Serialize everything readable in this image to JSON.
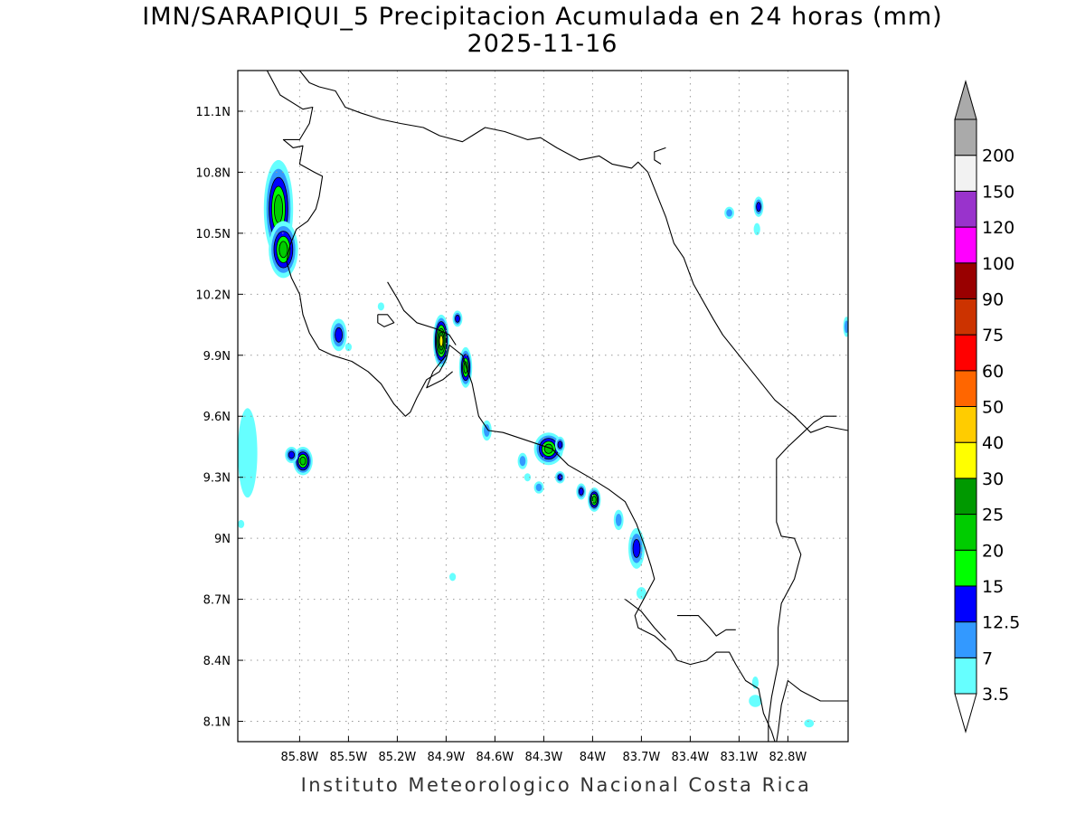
{
  "title": "IMN/SARAPIQUI_5 Precipitacion Acumulada en 24 horas (mm)",
  "subtitle": "2025-11-16",
  "footer": "Instituto Meteorologico Nacional Costa Rica",
  "map": {
    "lon_range": [
      -86.18,
      -82.43
    ],
    "lat_range": [
      8.0,
      11.3
    ],
    "x_ticks": [
      {
        "lon": -85.8,
        "label": "85.8W"
      },
      {
        "lon": -85.5,
        "label": "85.5W"
      },
      {
        "lon": -85.2,
        "label": "85.2W"
      },
      {
        "lon": -84.9,
        "label": "84.9W"
      },
      {
        "lon": -84.6,
        "label": "84.6W"
      },
      {
        "lon": -84.3,
        "label": "84.3W"
      },
      {
        "lon": -84.0,
        "label": "84W"
      },
      {
        "lon": -83.7,
        "label": "83.7W"
      },
      {
        "lon": -83.4,
        "label": "83.4W"
      },
      {
        "lon": -83.1,
        "label": "83.1W"
      },
      {
        "lon": -82.8,
        "label": "82.8W"
      }
    ],
    "y_ticks": [
      {
        "lat": 11.1,
        "label": "11.1N"
      },
      {
        "lat": 10.8,
        "label": "10.8N"
      },
      {
        "lat": 10.5,
        "label": "10.5N"
      },
      {
        "lat": 10.2,
        "label": "10.2N"
      },
      {
        "lat": 9.9,
        "label": "9.9N"
      },
      {
        "lat": 9.6,
        "label": "9.6N"
      },
      {
        "lat": 9.3,
        "label": "9.3N"
      },
      {
        "lat": 9.0,
        "label": "9N"
      },
      {
        "lat": 8.7,
        "label": "8.7N"
      },
      {
        "lat": 8.4,
        "label": "8.4N"
      },
      {
        "lat": 8.1,
        "label": "8.1N"
      }
    ],
    "grid": true
  },
  "legend": {
    "orientation": "vertical",
    "levels": [
      {
        "label": "3.5",
        "color": "#66ffff"
      },
      {
        "label": "7",
        "color": "#3399ff"
      },
      {
        "label": "12.5",
        "color": "#0000ff"
      },
      {
        "label": "15",
        "color": "#00ff00"
      },
      {
        "label": "20",
        "color": "#00cc00"
      },
      {
        "label": "25",
        "color": "#009900"
      },
      {
        "label": "30",
        "color": "#ffff00"
      },
      {
        "label": "40",
        "color": "#ffcc00"
      },
      {
        "label": "50",
        "color": "#ff6600"
      },
      {
        "label": "60",
        "color": "#ff0000"
      },
      {
        "label": "75",
        "color": "#cc3300"
      },
      {
        "label": "90",
        "color": "#990000"
      },
      {
        "label": "100",
        "color": "#ff00ff"
      },
      {
        "label": "120",
        "color": "#9933cc"
      },
      {
        "label": "150",
        "color": "#f2f2f2"
      },
      {
        "label": "200",
        "color": "#aaaaaa"
      }
    ],
    "under_color": "#ffffff",
    "over_color": "#aaaaaa"
  },
  "precip_cells": [
    {
      "lon": -85.93,
      "lat": 10.62,
      "rx": 0.09,
      "ry": 0.24,
      "level": 4
    },
    {
      "lon": -85.9,
      "lat": 10.42,
      "rx": 0.09,
      "ry": 0.14,
      "level": 4
    },
    {
      "lon": -85.56,
      "lat": 10.0,
      "rx": 0.05,
      "ry": 0.08,
      "level": 2
    },
    {
      "lon": -84.93,
      "lat": 9.97,
      "rx": 0.05,
      "ry": 0.13,
      "level": 6
    },
    {
      "lon": -84.83,
      "lat": 10.08,
      "rx": 0.03,
      "ry": 0.04,
      "level": 2
    },
    {
      "lon": -84.78,
      "lat": 9.84,
      "rx": 0.04,
      "ry": 0.1,
      "level": 4
    },
    {
      "lon": -84.65,
      "lat": 9.53,
      "rx": 0.03,
      "ry": 0.05,
      "level": 1
    },
    {
      "lon": -85.78,
      "lat": 9.38,
      "rx": 0.06,
      "ry": 0.07,
      "level": 4
    },
    {
      "lon": -85.85,
      "lat": 9.41,
      "rx": 0.04,
      "ry": 0.04,
      "level": 2
    },
    {
      "lon": -86.12,
      "lat": 9.42,
      "rx": 0.06,
      "ry": 0.22,
      "level": 0
    },
    {
      "lon": -84.27,
      "lat": 9.44,
      "rx": 0.09,
      "ry": 0.08,
      "level": 4
    },
    {
      "lon": -84.2,
      "lat": 9.46,
      "rx": 0.03,
      "ry": 0.04,
      "level": 2
    },
    {
      "lon": -84.2,
      "lat": 9.3,
      "rx": 0.03,
      "ry": 0.03,
      "level": 2
    },
    {
      "lon": -84.43,
      "lat": 9.38,
      "rx": 0.03,
      "ry": 0.04,
      "level": 1
    },
    {
      "lon": -84.4,
      "lat": 9.3,
      "rx": 0.02,
      "ry": 0.02,
      "level": 0
    },
    {
      "lon": -84.33,
      "lat": 9.25,
      "rx": 0.03,
      "ry": 0.03,
      "level": 1
    },
    {
      "lon": -84.07,
      "lat": 9.23,
      "rx": 0.03,
      "ry": 0.04,
      "level": 2
    },
    {
      "lon": -83.99,
      "lat": 9.19,
      "rx": 0.04,
      "ry": 0.06,
      "level": 4
    },
    {
      "lon": -83.84,
      "lat": 9.09,
      "rx": 0.03,
      "ry": 0.05,
      "level": 1
    },
    {
      "lon": -83.73,
      "lat": 8.95,
      "rx": 0.05,
      "ry": 0.1,
      "level": 2
    },
    {
      "lon": -83.7,
      "lat": 8.73,
      "rx": 0.03,
      "ry": 0.03,
      "level": 0
    },
    {
      "lon": -82.98,
      "lat": 10.63,
      "rx": 0.03,
      "ry": 0.05,
      "level": 2
    },
    {
      "lon": -83.16,
      "lat": 10.6,
      "rx": 0.03,
      "ry": 0.03,
      "level": 1
    },
    {
      "lon": -82.99,
      "lat": 10.52,
      "rx": 0.02,
      "ry": 0.03,
      "level": 0
    },
    {
      "lon": -82.44,
      "lat": 10.04,
      "rx": 0.02,
      "ry": 0.05,
      "level": 1
    },
    {
      "lon": -84.86,
      "lat": 8.81,
      "rx": 0.02,
      "ry": 0.02,
      "level": 0
    },
    {
      "lon": -83.0,
      "lat": 8.2,
      "rx": 0.04,
      "ry": 0.03,
      "level": 0
    },
    {
      "lon": -83.0,
      "lat": 8.29,
      "rx": 0.02,
      "ry": 0.03,
      "level": 0
    },
    {
      "lon": -82.67,
      "lat": 8.09,
      "rx": 0.03,
      "ry": 0.02,
      "level": 0
    },
    {
      "lon": -86.16,
      "lat": 9.07,
      "rx": 0.02,
      "ry": 0.02,
      "level": 0
    },
    {
      "lon": -85.5,
      "lat": 9.94,
      "rx": 0.02,
      "ry": 0.02,
      "level": 0
    },
    {
      "lon": -85.3,
      "lat": 10.14,
      "rx": 0.02,
      "ry": 0.02,
      "level": 0
    }
  ],
  "coastlines": [
    [
      [
        -86.0,
        11.3
      ],
      [
        -85.92,
        11.18
      ],
      [
        -85.78,
        11.11
      ],
      [
        -85.72,
        11.12
      ],
      [
        -85.74,
        11.04
      ],
      [
        -85.8,
        10.96
      ],
      [
        -85.9,
        10.96
      ],
      [
        -85.84,
        10.92
      ],
      [
        -85.78,
        10.93
      ],
      [
        -85.8,
        10.84
      ],
      [
        -85.71,
        10.8
      ],
      [
        -85.66,
        10.78
      ],
      [
        -85.68,
        10.68
      ],
      [
        -85.7,
        10.62
      ],
      [
        -85.75,
        10.56
      ],
      [
        -85.82,
        10.52
      ],
      [
        -85.86,
        10.44
      ],
      [
        -85.88,
        10.36
      ],
      [
        -85.85,
        10.28
      ],
      [
        -85.8,
        10.2
      ],
      [
        -85.78,
        10.1
      ],
      [
        -85.74,
        10.01
      ],
      [
        -85.68,
        9.93
      ],
      [
        -85.6,
        9.9
      ],
      [
        -85.48,
        9.87
      ],
      [
        -85.38,
        9.82
      ],
      [
        -85.3,
        9.76
      ],
      [
        -85.22,
        9.66
      ],
      [
        -85.15,
        9.6
      ],
      [
        -85.12,
        9.62
      ],
      [
        -85.08,
        9.69
      ],
      [
        -85.02,
        9.78
      ],
      [
        -84.94,
        9.82
      ],
      [
        -84.9,
        9.88
      ],
      [
        -84.88,
        9.95
      ],
      [
        -84.8,
        9.9
      ],
      [
        -84.74,
        9.76
      ],
      [
        -84.7,
        9.6
      ],
      [
        -84.64,
        9.53
      ],
      [
        -84.55,
        9.52
      ],
      [
        -84.4,
        9.48
      ],
      [
        -84.25,
        9.44
      ],
      [
        -84.15,
        9.36
      ],
      [
        -84.02,
        9.3
      ],
      [
        -83.9,
        9.24
      ],
      [
        -83.8,
        9.18
      ],
      [
        -83.73,
        9.07
      ],
      [
        -83.68,
        8.96
      ],
      [
        -83.64,
        8.86
      ],
      [
        -83.62,
        8.8
      ],
      [
        -83.74,
        8.62
      ],
      [
        -83.72,
        8.56
      ],
      [
        -83.62,
        8.52
      ],
      [
        -83.52,
        8.45
      ],
      [
        -83.48,
        8.4
      ],
      [
        -83.4,
        8.38
      ],
      [
        -83.3,
        8.4
      ],
      [
        -83.24,
        8.44
      ],
      [
        -83.16,
        8.44
      ],
      [
        -83.12,
        8.38
      ],
      [
        -83.06,
        8.3
      ],
      [
        -82.98,
        8.26
      ],
      [
        -82.95,
        8.14
      ],
      [
        -82.9,
        8.05
      ],
      [
        -82.88,
        8.0
      ]
    ],
    [
      [
        -85.8,
        11.3
      ],
      [
        -85.74,
        11.24
      ],
      [
        -85.68,
        11.22
      ],
      [
        -85.58,
        11.2
      ],
      [
        -85.52,
        11.12
      ],
      [
        -85.42,
        11.09
      ],
      [
        -85.3,
        11.06
      ],
      [
        -85.18,
        11.04
      ],
      [
        -85.04,
        11.02
      ],
      [
        -84.94,
        10.98
      ],
      [
        -84.8,
        10.95
      ],
      [
        -84.74,
        10.98
      ],
      [
        -84.66,
        11.02
      ],
      [
        -84.54,
        11.0
      ],
      [
        -84.4,
        10.96
      ],
      [
        -84.32,
        10.97
      ],
      [
        -84.22,
        10.92
      ],
      [
        -84.08,
        10.86
      ],
      [
        -83.96,
        10.88
      ],
      [
        -83.88,
        10.84
      ],
      [
        -83.76,
        10.82
      ],
      [
        -83.72,
        10.85
      ],
      [
        -83.66,
        10.8
      ],
      [
        -83.62,
        10.72
      ],
      [
        -83.55,
        10.58
      ],
      [
        -83.5,
        10.45
      ],
      [
        -83.44,
        10.38
      ],
      [
        -83.38,
        10.25
      ],
      [
        -83.26,
        10.08
      ],
      [
        -83.2,
        10.0
      ],
      [
        -83.1,
        9.9
      ],
      [
        -83.0,
        9.8
      ],
      [
        -82.88,
        9.68
      ],
      [
        -82.76,
        9.6
      ],
      [
        -82.66,
        9.52
      ],
      [
        -82.56,
        9.55
      ],
      [
        -82.43,
        9.53
      ]
    ],
    [
      [
        -85.26,
        10.26
      ],
      [
        -85.2,
        10.18
      ],
      [
        -85.16,
        10.12
      ],
      [
        -85.08,
        10.06
      ],
      [
        -84.96,
        10.03
      ],
      [
        -84.88,
        10.0
      ],
      [
        -84.84,
        9.95
      ]
    ],
    [
      [
        -84.9,
        9.9
      ],
      [
        -84.98,
        9.82
      ],
      [
        -85.02,
        9.74
      ],
      [
        -84.92,
        9.78
      ],
      [
        -84.86,
        9.82
      ]
    ],
    [
      [
        -82.43,
        8.2
      ],
      [
        -82.6,
        8.2
      ],
      [
        -82.72,
        8.25
      ],
      [
        -82.8,
        8.3
      ],
      [
        -82.84,
        8.18
      ],
      [
        -82.86,
        8.05
      ],
      [
        -82.87,
        8.0
      ]
    ],
    [
      [
        -82.5,
        9.6
      ],
      [
        -82.58,
        9.6
      ],
      [
        -82.64,
        9.57
      ],
      [
        -82.8,
        9.45
      ],
      [
        -82.87,
        9.39
      ],
      [
        -82.87,
        9.08
      ],
      [
        -82.84,
        9.01
      ],
      [
        -82.76,
        9.0
      ],
      [
        -82.72,
        8.92
      ],
      [
        -82.76,
        8.8
      ],
      [
        -82.84,
        8.68
      ],
      [
        -82.86,
        8.56
      ],
      [
        -82.86,
        8.38
      ],
      [
        -82.9,
        8.22
      ],
      [
        -82.92,
        8.1
      ],
      [
        -82.92,
        8.0
      ]
    ],
    [
      [
        -83.55,
        10.92
      ],
      [
        -83.62,
        10.9
      ],
      [
        -83.62,
        10.86
      ],
      [
        -83.58,
        10.84
      ]
    ],
    [
      [
        -83.8,
        8.7
      ],
      [
        -83.7,
        8.64
      ],
      [
        -83.62,
        8.56
      ],
      [
        -83.55,
        8.5
      ]
    ],
    [
      [
        -83.48,
        8.62
      ],
      [
        -83.35,
        8.62
      ],
      [
        -83.28,
        8.56
      ],
      [
        -83.24,
        8.52
      ],
      [
        -83.18,
        8.55
      ],
      [
        -83.12,
        8.55
      ]
    ],
    [
      [
        -85.32,
        10.1
      ],
      [
        -85.26,
        10.1
      ],
      [
        -85.22,
        10.06
      ],
      [
        -85.28,
        10.04
      ],
      [
        -85.32,
        10.06
      ],
      [
        -85.32,
        10.1
      ]
    ]
  ]
}
